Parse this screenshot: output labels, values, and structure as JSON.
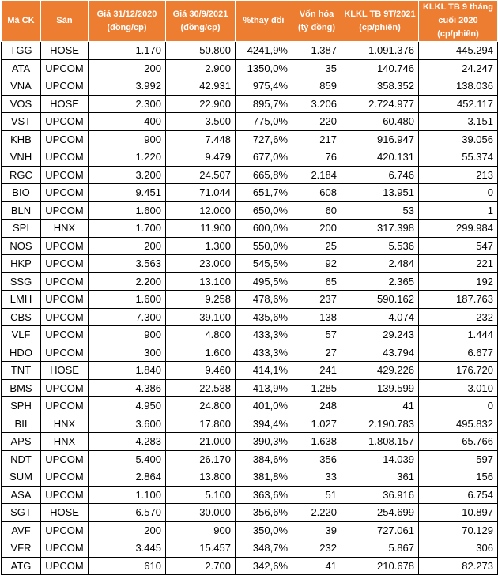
{
  "headers": [
    [
      "Mã CK"
    ],
    [
      "Sàn"
    ],
    [
      "Giá 31/12/2020",
      "(đồng/cp)"
    ],
    [
      "Giá 30/9/2021",
      "(đồng/cp)"
    ],
    [
      "%thay đổi"
    ],
    [
      "Vốn hóa",
      "(tỷ đồng)"
    ],
    [
      "KLKL TB 9T/2021",
      "(cp/phiên)"
    ],
    [
      "KLKL TB 9 tháng",
      "cuối 2020",
      "(cp/phiên)"
    ]
  ],
  "rows": [
    [
      "TGG",
      "HOSE",
      "1.170",
      "50.800",
      "4241,9%",
      "1.387",
      "1.091.376",
      "445.294"
    ],
    [
      "ATA",
      "UPCOM",
      "200",
      "2.900",
      "1350,0%",
      "35",
      "140.746",
      "24.247"
    ],
    [
      "VNA",
      "UPCOM",
      "3.992",
      "42.931",
      "975,4%",
      "859",
      "358.352",
      "138.036"
    ],
    [
      "VOS",
      "HOSE",
      "2.300",
      "22.900",
      "895,7%",
      "3.206",
      "2.724.977",
      "452.117"
    ],
    [
      "VST",
      "UPCOM",
      "400",
      "3.500",
      "775,0%",
      "220",
      "60.480",
      "3.151"
    ],
    [
      "KHB",
      "UPCOM",
      "900",
      "7.448",
      "727,6%",
      "217",
      "916.947",
      "39.056"
    ],
    [
      "VNH",
      "UPCOM",
      "1.220",
      "9.479",
      "677,0%",
      "76",
      "420.131",
      "55.374"
    ],
    [
      "RGC",
      "UPCOM",
      "3.200",
      "24.507",
      "665,8%",
      "2.184",
      "6.746",
      "213"
    ],
    [
      "BIO",
      "UPCOM",
      "9.451",
      "71.044",
      "651,7%",
      "608",
      "13.951",
      "0"
    ],
    [
      "BLN",
      "UPCOM",
      "1.600",
      "12.000",
      "650,0%",
      "60",
      "53",
      "1"
    ],
    [
      "SPI",
      "HNX",
      "1.700",
      "11.900",
      "600,0%",
      "200",
      "317.398",
      "299.984"
    ],
    [
      "NOS",
      "UPCOM",
      "200",
      "1.300",
      "550,0%",
      "25",
      "5.536",
      "547"
    ],
    [
      "HKP",
      "UPCOM",
      "3.563",
      "23.000",
      "545,5%",
      "92",
      "2.484",
      "221"
    ],
    [
      "SSG",
      "UPCOM",
      "2.200",
      "13.100",
      "495,5%",
      "65",
      "2.365",
      "192"
    ],
    [
      "LMH",
      "UPCOM",
      "1.600",
      "9.258",
      "478,6%",
      "237",
      "590.162",
      "187.763"
    ],
    [
      "CBS",
      "UPCOM",
      "7.300",
      "39.100",
      "435,6%",
      "138",
      "4.074",
      "232"
    ],
    [
      "VLF",
      "UPCOM",
      "900",
      "4.800",
      "433,3%",
      "57",
      "29.243",
      "1.444"
    ],
    [
      "HDO",
      "UPCOM",
      "300",
      "1.600",
      "433,3%",
      "27",
      "43.794",
      "6.677"
    ],
    [
      "TNT",
      "HOSE",
      "1.840",
      "9.460",
      "414,1%",
      "241",
      "429.226",
      "176.720"
    ],
    [
      "BMS",
      "UPCOM",
      "4.386",
      "22.538",
      "413,9%",
      "1.285",
      "139.599",
      "3.010"
    ],
    [
      "SPH",
      "UPCOM",
      "4.950",
      "24.800",
      "401,0%",
      "248",
      "41",
      "0"
    ],
    [
      "BII",
      "HNX",
      "3.600",
      "17.800",
      "394,4%",
      "1.027",
      "2.190.783",
      "495.832"
    ],
    [
      "APS",
      "HNX",
      "4.283",
      "21.000",
      "390,3%",
      "1.638",
      "1.808.157",
      "65.766"
    ],
    [
      "NDT",
      "UPCOM",
      "5.400",
      "26.170",
      "384,6%",
      "356",
      "14.039",
      "597"
    ],
    [
      "SUM",
      "UPCOM",
      "2.864",
      "13.800",
      "381,8%",
      "33",
      "361",
      "156"
    ],
    [
      "ASA",
      "UPCOM",
      "1.100",
      "5.100",
      "363,6%",
      "51",
      "36.916",
      "6.754"
    ],
    [
      "SGT",
      "HOSE",
      "6.570",
      "30.000",
      "356,6%",
      "2.220",
      "254.699",
      "10.897"
    ],
    [
      "AVF",
      "UPCOM",
      "200",
      "900",
      "350,0%",
      "39",
      "727.061",
      "70.129"
    ],
    [
      "VFR",
      "UPCOM",
      "3.445",
      "15.457",
      "348,7%",
      "232",
      "5.867",
      "306"
    ],
    [
      "ATG",
      "UPCOM",
      "610",
      "2.700",
      "342,6%",
      "41",
      "210.678",
      "82.273"
    ]
  ],
  "colors": {
    "header_bg": "#ed7d31",
    "header_text": "#ffffff",
    "border": "#000000"
  }
}
